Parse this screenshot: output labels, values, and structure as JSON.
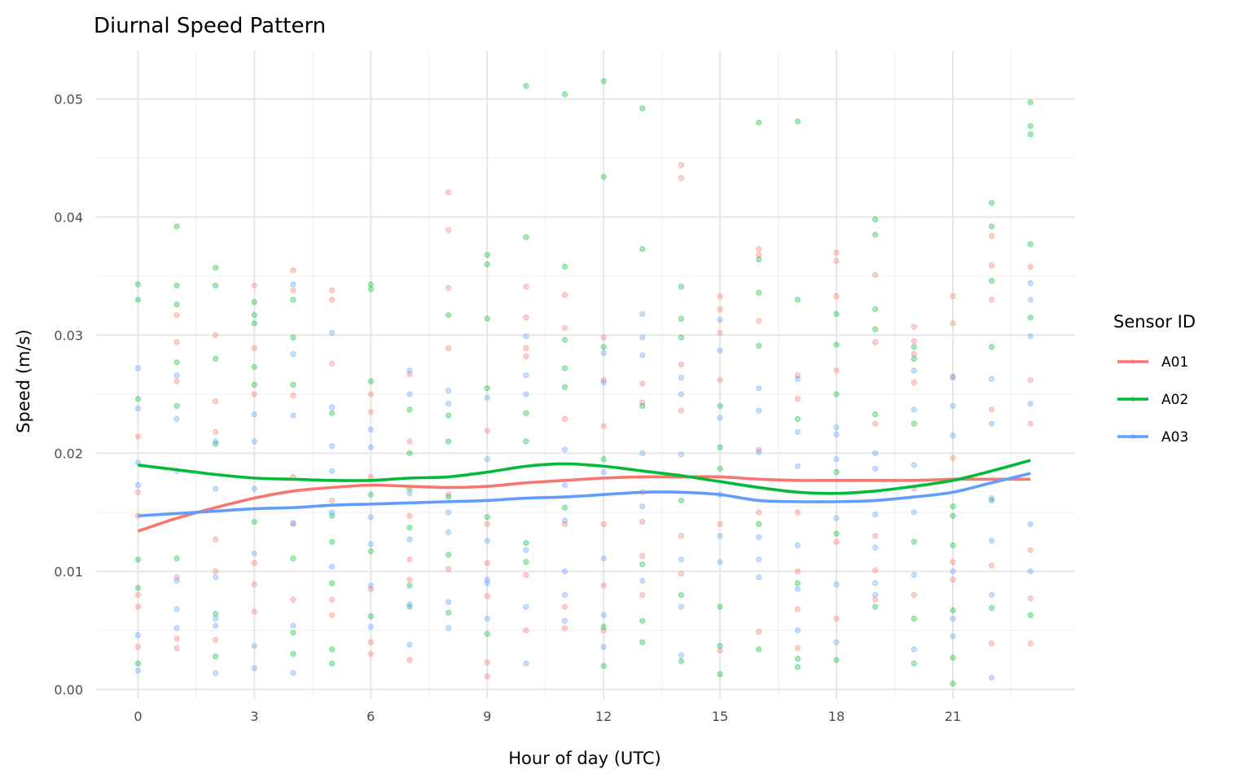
{
  "chart_data": {
    "type": "scatter",
    "title": "Diurnal Speed Pattern",
    "xlabel": "Hour of day (UTC)",
    "ylabel": "Speed (m/s)",
    "xlim": [
      -1.1,
      24.15
    ],
    "ylim": [
      -0.0008,
      0.0541
    ],
    "x_ticks": [
      0,
      3,
      6,
      9,
      12,
      15,
      18,
      21
    ],
    "x_tick_labels": [
      "0",
      "3",
      "6",
      "9",
      "12",
      "15",
      "18",
      "21"
    ],
    "y_ticks": [
      0,
      0.01,
      0.02,
      0.03,
      0.04,
      0.05
    ],
    "y_tick_labels": [
      "0.00",
      "0.01",
      "0.02",
      "0.03",
      "0.04",
      "0.05"
    ],
    "grid": true,
    "legend": {
      "title": "Sensor ID",
      "placement": "right"
    },
    "hours": [
      0,
      1,
      2,
      3,
      4,
      5,
      6,
      7,
      8,
      9,
      10,
      11,
      12,
      13,
      14,
      15,
      16,
      17,
      18,
      19,
      20,
      21,
      22,
      23
    ],
    "series": [
      {
        "name": "A01",
        "color": "#F8766D",
        "smooth": [
          0.0134,
          0.0145,
          0.0154,
          0.0162,
          0.0168,
          0.0171,
          0.0173,
          0.0172,
          0.0171,
          0.0172,
          0.0175,
          0.0177,
          0.0179,
          0.018,
          0.018,
          0.018,
          0.0178,
          0.0177,
          0.0177,
          0.0177,
          0.0177,
          0.0178,
          0.0178,
          0.0178
        ],
        "points": [
          [
            0.0214,
            0.0167,
            0.008,
            0.0036,
            0.007,
            0.0147
          ],
          [
            0.0317,
            0.0294,
            0.0261,
            0.0095,
            0.0035,
            0.0043
          ],
          [
            0.03,
            0.0244,
            0.0218,
            0.0127,
            0.0042,
            0.01
          ],
          [
            0.0342,
            0.0289,
            0.025,
            0.0107,
            0.0066,
            0.0089
          ],
          [
            0.0355,
            0.0338,
            0.0249,
            0.018,
            0.014,
            0.0076
          ],
          [
            0.0338,
            0.033,
            0.0276,
            0.016,
            0.0063,
            0.0076
          ],
          [
            0.025,
            0.0235,
            0.018,
            0.0085,
            0.004,
            0.003
          ],
          [
            0.0267,
            0.021,
            0.0147,
            0.011,
            0.0093,
            0.0025
          ],
          [
            0.0421,
            0.0389,
            0.034,
            0.0289,
            0.0165,
            0.0102
          ],
          [
            0.0219,
            0.014,
            0.0107,
            0.0079,
            0.0023,
            0.0011
          ],
          [
            0.0341,
            0.0315,
            0.0289,
            0.0282,
            0.0097,
            0.005
          ],
          [
            0.0334,
            0.0306,
            0.0229,
            0.014,
            0.007,
            0.0052
          ],
          [
            0.0298,
            0.0262,
            0.0223,
            0.0088,
            0.005,
            0.014
          ],
          [
            0.0259,
            0.0243,
            0.0167,
            0.0113,
            0.008,
            0.0142
          ],
          [
            0.0444,
            0.0433,
            0.0275,
            0.0236,
            0.013,
            0.0098
          ],
          [
            0.0333,
            0.0322,
            0.0302,
            0.0262,
            0.014,
            0.0033
          ],
          [
            0.0373,
            0.0368,
            0.0312,
            0.0203,
            0.015,
            0.0049
          ],
          [
            0.0266,
            0.0246,
            0.015,
            0.01,
            0.0068,
            0.0035
          ],
          [
            0.037,
            0.0363,
            0.0333,
            0.027,
            0.0125,
            0.006
          ],
          [
            0.0351,
            0.0294,
            0.0225,
            0.013,
            0.0101,
            0.0076
          ],
          [
            0.0307,
            0.0295,
            0.0284,
            0.026,
            0.017,
            0.008
          ],
          [
            0.0333,
            0.031,
            0.0265,
            0.0196,
            0.0108,
            0.0093
          ],
          [
            0.0384,
            0.0359,
            0.033,
            0.0237,
            0.0105,
            0.0039
          ],
          [
            0.0358,
            0.0262,
            0.0225,
            0.0118,
            0.0077,
            0.0039
          ]
        ]
      },
      {
        "name": "A02",
        "color": "#00BA38",
        "smooth": [
          0.019,
          0.0186,
          0.0182,
          0.0179,
          0.0178,
          0.0177,
          0.0177,
          0.0179,
          0.018,
          0.0184,
          0.0189,
          0.0191,
          0.0189,
          0.0185,
          0.0181,
          0.0176,
          0.0171,
          0.0167,
          0.0166,
          0.0168,
          0.0172,
          0.0177,
          0.0185,
          0.0194
        ],
        "points": [
          [
            0.0343,
            0.033,
            0.0246,
            0.0086,
            0.0022,
            0.011
          ],
          [
            0.0392,
            0.0342,
            0.0326,
            0.0277,
            0.024,
            0.0111
          ],
          [
            0.0357,
            0.0342,
            0.028,
            0.0208,
            0.0064,
            0.0028
          ],
          [
            0.0328,
            0.0317,
            0.031,
            0.0273,
            0.0258,
            0.0142
          ],
          [
            0.033,
            0.0298,
            0.0258,
            0.0111,
            0.0048,
            0.003
          ],
          [
            0.0234,
            0.0147,
            0.009,
            0.0034,
            0.0022,
            0.0125
          ],
          [
            0.0343,
            0.0339,
            0.0261,
            0.0165,
            0.0117,
            0.0062
          ],
          [
            0.0237,
            0.02,
            0.0137,
            0.0088,
            0.007,
            0.017
          ],
          [
            0.0317,
            0.0232,
            0.021,
            0.0163,
            0.0114,
            0.0065
          ],
          [
            0.0368,
            0.036,
            0.0314,
            0.0255,
            0.0146,
            0.0047
          ],
          [
            0.0511,
            0.0383,
            0.0234,
            0.021,
            0.0124,
            0.0108
          ],
          [
            0.0504,
            0.0358,
            0.0296,
            0.0272,
            0.0256,
            0.0154
          ],
          [
            0.0515,
            0.0434,
            0.029,
            0.0195,
            0.0053,
            0.002
          ],
          [
            0.0492,
            0.0373,
            0.024,
            0.0106,
            0.0058,
            0.004
          ],
          [
            0.0341,
            0.0314,
            0.0298,
            0.016,
            0.008,
            0.0024
          ],
          [
            0.024,
            0.0205,
            0.0187,
            0.007,
            0.0037,
            0.0013
          ],
          [
            0.048,
            0.0364,
            0.0336,
            0.0291,
            0.014,
            0.0034
          ],
          [
            0.0481,
            0.033,
            0.0229,
            0.009,
            0.0026,
            0.0019
          ],
          [
            0.0318,
            0.0292,
            0.025,
            0.0184,
            0.0132,
            0.0025
          ],
          [
            0.0398,
            0.0385,
            0.0322,
            0.0305,
            0.0233,
            0.007
          ],
          [
            0.029,
            0.028,
            0.0225,
            0.0125,
            0.006,
            0.0022
          ],
          [
            0.0155,
            0.0147,
            0.0122,
            0.0067,
            0.0027,
            0.0005
          ],
          [
            0.0412,
            0.0392,
            0.0346,
            0.029,
            0.016,
            0.0069
          ],
          [
            0.0497,
            0.0477,
            0.047,
            0.0377,
            0.0315,
            0.0063
          ]
        ]
      },
      {
        "name": "A03",
        "color": "#619CFF",
        "smooth": [
          0.0147,
          0.0149,
          0.0151,
          0.0153,
          0.0154,
          0.0156,
          0.0157,
          0.0158,
          0.0159,
          0.016,
          0.0162,
          0.0163,
          0.0165,
          0.0167,
          0.0167,
          0.0165,
          0.016,
          0.0159,
          0.0159,
          0.016,
          0.0163,
          0.0167,
          0.0175,
          0.0183
        ],
        "points": [
          [
            0.0272,
            0.0238,
            0.0192,
            0.0046,
            0.0016,
            0.0173
          ],
          [
            0.0266,
            0.0229,
            0.0185,
            0.0092,
            0.0052,
            0.0068
          ],
          [
            0.021,
            0.0095,
            0.0054,
            0.0014,
            0.006,
            0.017
          ],
          [
            0.0233,
            0.021,
            0.017,
            0.0037,
            0.0018,
            0.0115
          ],
          [
            0.0343,
            0.0284,
            0.0232,
            0.0141,
            0.0054,
            0.0014
          ],
          [
            0.0302,
            0.0239,
            0.0206,
            0.0104,
            0.015,
            0.0185
          ],
          [
            0.022,
            0.0205,
            0.0146,
            0.0123,
            0.0088,
            0.0053
          ],
          [
            0.027,
            0.025,
            0.0166,
            0.0127,
            0.0072,
            0.0038
          ],
          [
            0.0253,
            0.0242,
            0.015,
            0.0133,
            0.0074,
            0.0052
          ],
          [
            0.0247,
            0.0195,
            0.0126,
            0.0093,
            0.009,
            0.006
          ],
          [
            0.0299,
            0.0266,
            0.025,
            0.0118,
            0.007,
            0.0022
          ],
          [
            0.0203,
            0.0173,
            0.0143,
            0.008,
            0.0058,
            0.01
          ],
          [
            0.0285,
            0.026,
            0.0184,
            0.0111,
            0.0063,
            0.0036
          ],
          [
            0.0318,
            0.0298,
            0.0283,
            0.02,
            0.0155,
            0.0092
          ],
          [
            0.0264,
            0.025,
            0.0199,
            0.011,
            0.007,
            0.0029
          ],
          [
            0.0313,
            0.0287,
            0.023,
            0.013,
            0.0108,
            0.0165
          ],
          [
            0.0255,
            0.0236,
            0.0201,
            0.011,
            0.0095,
            0.0129
          ],
          [
            0.0263,
            0.0218,
            0.0189,
            0.0122,
            0.0085,
            0.005
          ],
          [
            0.0222,
            0.0216,
            0.0195,
            0.0145,
            0.0089,
            0.004
          ],
          [
            0.02,
            0.0187,
            0.0148,
            0.009,
            0.008,
            0.012
          ],
          [
            0.027,
            0.0237,
            0.019,
            0.015,
            0.0097,
            0.0034
          ],
          [
            0.0264,
            0.024,
            0.0215,
            0.01,
            0.006,
            0.0045
          ],
          [
            0.0263,
            0.0225,
            0.0162,
            0.0126,
            0.008,
            0.001
          ],
          [
            0.0344,
            0.033,
            0.0299,
            0.0242,
            0.014,
            0.01
          ]
        ]
      }
    ]
  }
}
